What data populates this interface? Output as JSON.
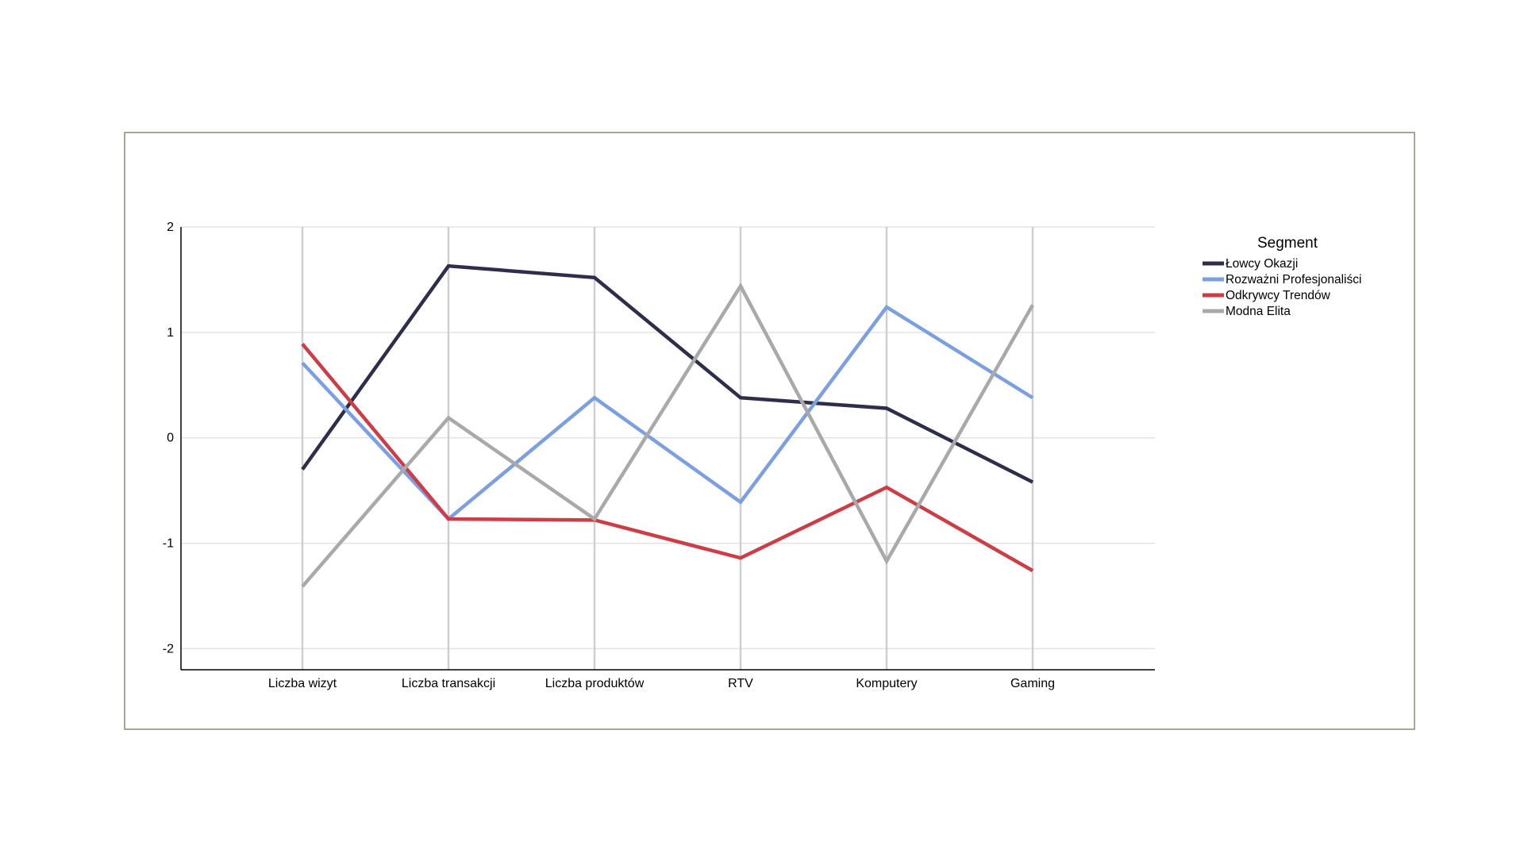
{
  "chart_data": {
    "type": "line",
    "title": "",
    "xlabel": "",
    "ylabel": "",
    "categories": [
      "Liczba wizyt",
      "Liczba transakcji",
      "Liczba produktów",
      "RTV",
      "Komputery",
      "Gaming"
    ],
    "ylim": [
      -2.2,
      2
    ],
    "yticks": [
      2,
      1,
      0,
      -1,
      -2
    ],
    "grid": true,
    "legend": {
      "title": "Segment",
      "placement": "right"
    },
    "series": [
      {
        "name": "Łowcy Okazji",
        "color": "#2e2e4a",
        "values": [
          -0.3,
          1.63,
          1.52,
          0.38,
          0.28,
          -0.42
        ]
      },
      {
        "name": "Rozważni Profesjonaliści",
        "color": "#7b9fe0",
        "values": [
          0.71,
          -0.77,
          0.38,
          -0.61,
          1.24,
          0.38
        ]
      },
      {
        "name": "Odkrywcy Trendów",
        "color": "#cc3d46",
        "values": [
          0.89,
          -0.77,
          -0.78,
          -1.14,
          -0.47,
          -1.26
        ]
      },
      {
        "name": "Modna Elita",
        "color": "#a9a9a9",
        "values": [
          -1.41,
          0.19,
          -0.77,
          1.44,
          -1.17,
          1.26
        ]
      }
    ]
  }
}
